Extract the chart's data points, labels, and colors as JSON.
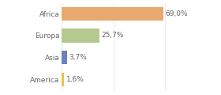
{
  "categories": [
    "America",
    "Asia",
    "Europa",
    "Africa"
  ],
  "values": [
    1.6,
    3.7,
    25.7,
    69.0
  ],
  "bar_colors": [
    "#e8c44a",
    "#6b82c0",
    "#b5c98e",
    "#e8a96e"
  ],
  "labels": [
    "1,6%",
    "3,7%",
    "25,7%",
    "69,0%"
  ],
  "xlim": [
    0,
    105
  ],
  "background_color": "#ffffff",
  "text_color": "#666666",
  "bar_height": 0.62,
  "label_fontsize": 6.5,
  "tick_fontsize": 6.5,
  "figsize": [
    2.8,
    1.2
  ],
  "dpi": 100
}
